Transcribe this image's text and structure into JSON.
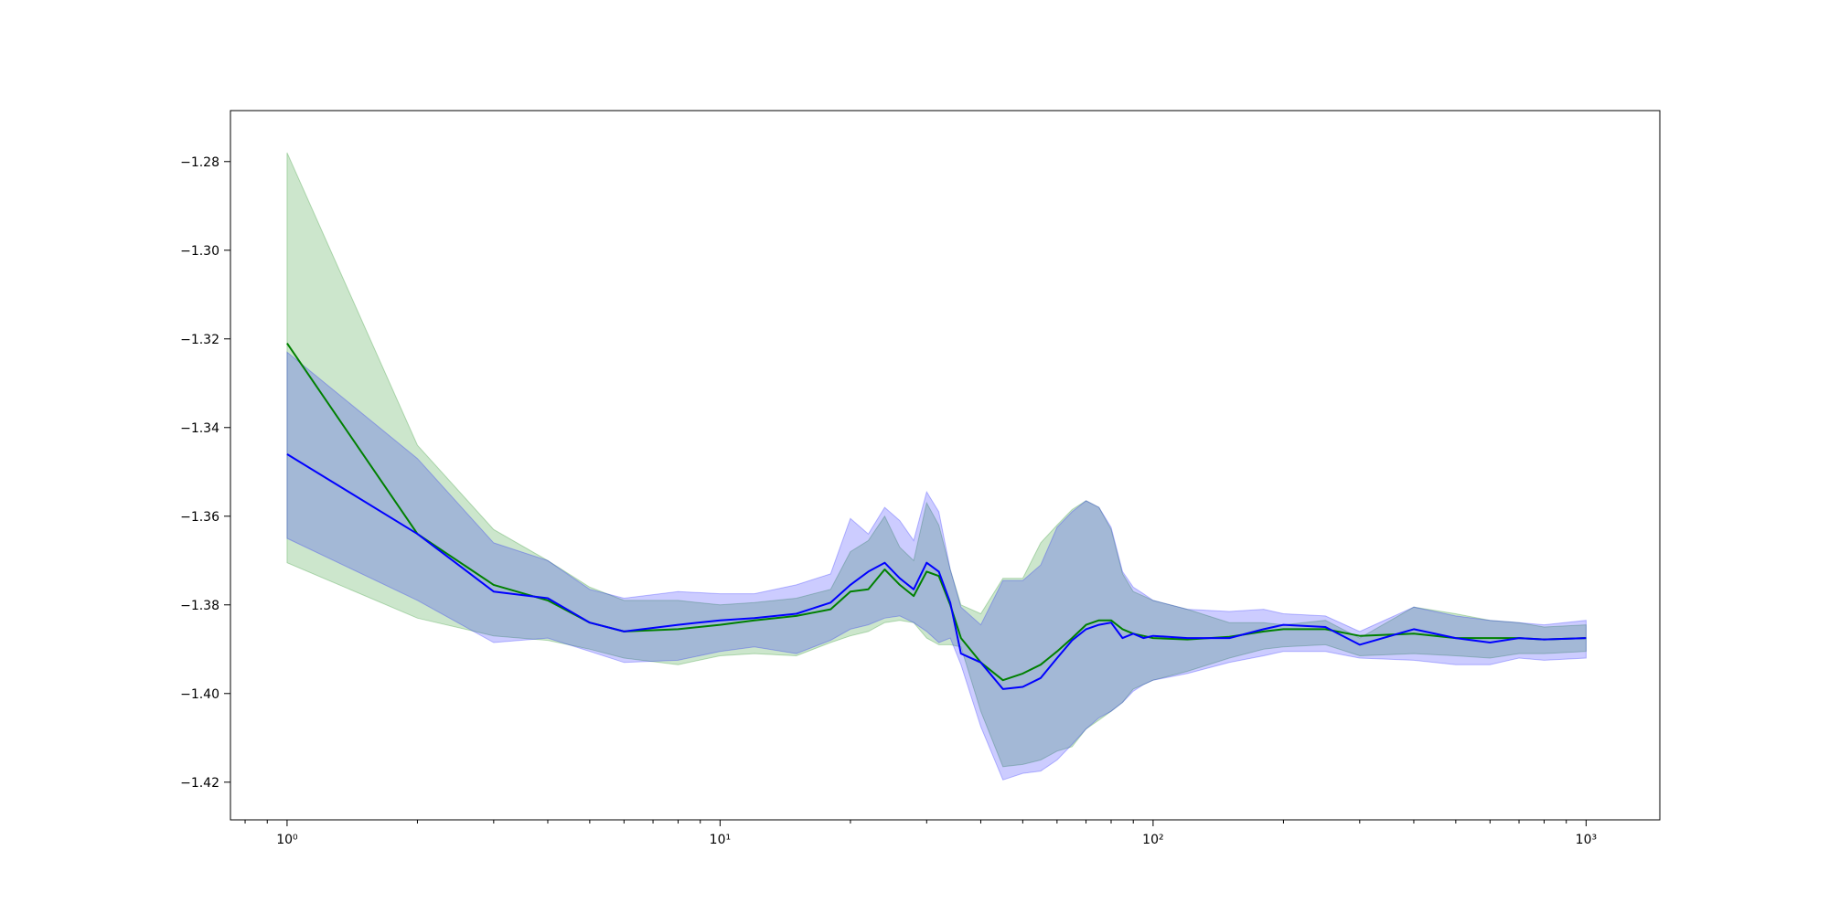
{
  "chart_data": {
    "type": "line",
    "title": "",
    "xlabel": "",
    "ylabel": "",
    "xscale": "log",
    "xlim": [
      0.74,
      1480
    ],
    "ylim": [
      -1.4285,
      -1.2685
    ],
    "grid": false,
    "legend": "none",
    "x_ticks": [
      {
        "value": 1,
        "label": "10⁰"
      },
      {
        "value": 10,
        "label": "10¹"
      },
      {
        "value": 100,
        "label": "10²"
      },
      {
        "value": 1000,
        "label": "10³"
      }
    ],
    "y_ticks": [
      {
        "value": -1.28,
        "label": "−1.28"
      },
      {
        "value": -1.3,
        "label": "−1.30"
      },
      {
        "value": -1.32,
        "label": "−1.32"
      },
      {
        "value": -1.34,
        "label": "−1.34"
      },
      {
        "value": -1.36,
        "label": "−1.36"
      },
      {
        "value": -1.38,
        "label": "−1.38"
      },
      {
        "value": -1.4,
        "label": "−1.40"
      },
      {
        "value": -1.42,
        "label": "−1.42"
      }
    ],
    "series": [
      {
        "color": "#008000",
        "band_color": "#008000",
        "x": [
          1,
          2,
          3,
          4,
          5,
          6,
          8,
          10,
          12,
          15,
          18,
          20,
          22,
          24,
          26,
          28,
          30,
          32,
          34,
          36,
          40,
          45,
          50,
          55,
          60,
          65,
          70,
          75,
          80,
          85,
          90,
          95,
          100,
          120,
          150,
          180,
          200,
          250,
          300,
          400,
          500,
          600,
          700,
          800,
          1000
        ],
        "y": [
          -1.321,
          -1.364,
          -1.3755,
          -1.379,
          -1.384,
          -1.386,
          -1.3855,
          -1.3845,
          -1.3835,
          -1.3825,
          -1.381,
          -1.377,
          -1.3765,
          -1.372,
          -1.3755,
          -1.378,
          -1.3725,
          -1.3735,
          -1.38,
          -1.3875,
          -1.393,
          -1.397,
          -1.3955,
          -1.3935,
          -1.3905,
          -1.3875,
          -1.3845,
          -1.3835,
          -1.3835,
          -1.3855,
          -1.3865,
          -1.387,
          -1.3875,
          -1.3878,
          -1.3872,
          -1.386,
          -1.3855,
          -1.3855,
          -1.387,
          -1.3865,
          -1.3875,
          -1.3875,
          -1.3875,
          -1.3878,
          -1.3875
        ],
        "upper": [
          -1.278,
          -1.344,
          -1.363,
          -1.37,
          -1.376,
          -1.379,
          -1.379,
          -1.38,
          -1.3795,
          -1.3785,
          -1.3765,
          -1.368,
          -1.3655,
          -1.36,
          -1.367,
          -1.37,
          -1.357,
          -1.362,
          -1.372,
          -1.38,
          -1.382,
          -1.374,
          -1.374,
          -1.366,
          -1.362,
          -1.3585,
          -1.3565,
          -1.358,
          -1.363,
          -1.373,
          -1.377,
          -1.378,
          -1.379,
          -1.381,
          -1.384,
          -1.384,
          -1.3845,
          -1.3835,
          -1.3875,
          -1.3805,
          -1.382,
          -1.3835,
          -1.384,
          -1.385,
          -1.3845
        ],
        "lower": [
          -1.3705,
          -1.383,
          -1.387,
          -1.388,
          -1.39,
          -1.392,
          -1.3935,
          -1.3915,
          -1.391,
          -1.3915,
          -1.3885,
          -1.387,
          -1.386,
          -1.384,
          -1.3835,
          -1.384,
          -1.3875,
          -1.389,
          -1.389,
          -1.3895,
          -1.404,
          -1.4165,
          -1.416,
          -1.415,
          -1.413,
          -1.412,
          -1.408,
          -1.406,
          -1.404,
          -1.402,
          -1.399,
          -1.398,
          -1.397,
          -1.395,
          -1.392,
          -1.39,
          -1.3895,
          -1.389,
          -1.3915,
          -1.391,
          -1.3915,
          -1.392,
          -1.391,
          -1.391,
          -1.3905
        ]
      },
      {
        "color": "#0000ff",
        "band_color": "#0000ff",
        "x": [
          1,
          2,
          3,
          4,
          5,
          6,
          8,
          10,
          12,
          15,
          18,
          20,
          22,
          24,
          26,
          28,
          30,
          32,
          34,
          36,
          40,
          45,
          50,
          55,
          60,
          65,
          70,
          75,
          80,
          85,
          90,
          95,
          100,
          120,
          150,
          180,
          200,
          250,
          300,
          400,
          500,
          600,
          700,
          800,
          1000
        ],
        "y": [
          -1.346,
          -1.364,
          -1.377,
          -1.3785,
          -1.384,
          -1.386,
          -1.3845,
          -1.3835,
          -1.383,
          -1.382,
          -1.3795,
          -1.3755,
          -1.3725,
          -1.3705,
          -1.374,
          -1.3765,
          -1.3705,
          -1.3725,
          -1.3795,
          -1.391,
          -1.393,
          -1.399,
          -1.3985,
          -1.3965,
          -1.392,
          -1.388,
          -1.3855,
          -1.3845,
          -1.384,
          -1.3875,
          -1.3865,
          -1.3875,
          -1.387,
          -1.3875,
          -1.3875,
          -1.3855,
          -1.3845,
          -1.385,
          -1.389,
          -1.3855,
          -1.3875,
          -1.3885,
          -1.3875,
          -1.3878,
          -1.3875
        ],
        "upper": [
          -1.323,
          -1.347,
          -1.366,
          -1.37,
          -1.3765,
          -1.3785,
          -1.377,
          -1.3775,
          -1.3775,
          -1.3755,
          -1.373,
          -1.3605,
          -1.364,
          -1.358,
          -1.361,
          -1.3655,
          -1.3545,
          -1.359,
          -1.372,
          -1.3805,
          -1.3845,
          -1.3745,
          -1.3745,
          -1.371,
          -1.3625,
          -1.359,
          -1.3565,
          -1.358,
          -1.3625,
          -1.3725,
          -1.376,
          -1.3775,
          -1.379,
          -1.381,
          -1.3815,
          -1.381,
          -1.382,
          -1.3825,
          -1.386,
          -1.3805,
          -1.3825,
          -1.3835,
          -1.384,
          -1.3845,
          -1.3835
        ],
        "lower": [
          -1.365,
          -1.379,
          -1.3885,
          -1.3875,
          -1.3905,
          -1.393,
          -1.3925,
          -1.3905,
          -1.3895,
          -1.391,
          -1.388,
          -1.3855,
          -1.3845,
          -1.383,
          -1.3825,
          -1.384,
          -1.386,
          -1.3885,
          -1.3875,
          -1.3935,
          -1.4075,
          -1.4195,
          -1.418,
          -1.4175,
          -1.415,
          -1.4115,
          -1.408,
          -1.4055,
          -1.404,
          -1.402,
          -1.3995,
          -1.398,
          -1.397,
          -1.3955,
          -1.393,
          -1.3915,
          -1.3905,
          -1.3905,
          -1.392,
          -1.3925,
          -1.3935,
          -1.3935,
          -1.392,
          -1.3925,
          -1.392
        ]
      }
    ]
  }
}
